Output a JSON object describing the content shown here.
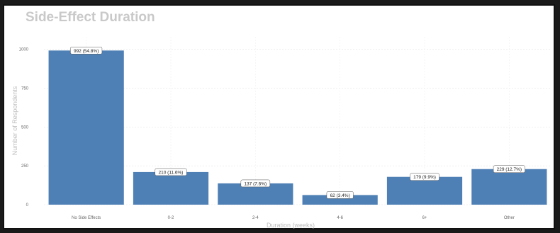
{
  "chart_data": {
    "type": "bar",
    "title": "Side-Effect Duration",
    "xlabel": "Duration (weeks)",
    "ylabel": "Number of Respondents",
    "categories": [
      "No Side Effects",
      "0-2",
      "2-4",
      "4-6",
      "6+",
      "Other"
    ],
    "values": [
      992,
      210,
      137,
      62,
      179,
      229
    ],
    "data_labels": [
      "992 (54.8%)",
      "210 (11.6%)",
      "137 (7.6%)",
      "62 (3.4%)",
      "179 (9.9%)",
      "229 (12.7%)"
    ],
    "yticks": [
      0,
      250,
      500,
      750,
      1000
    ],
    "ytick_labels": [
      "0",
      "250",
      "500",
      "750",
      "1000"
    ],
    "ylim": [
      0,
      1080
    ],
    "grid": true,
    "legend": "none",
    "bar_color": "#4f80b5"
  }
}
